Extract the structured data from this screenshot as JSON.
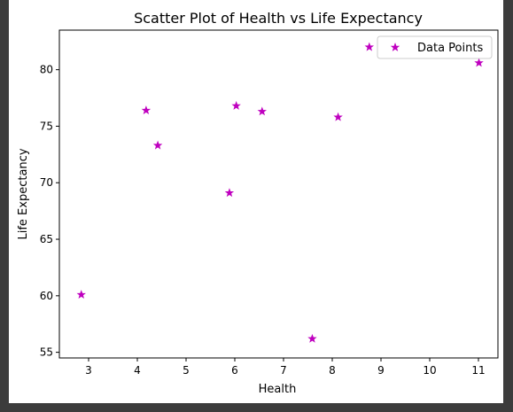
{
  "chart_data": {
    "type": "scatter",
    "title": "Scatter Plot of Health vs Life Expectancy",
    "xlabel": "Health",
    "ylabel": "Life Expectancy",
    "xlim": [
      2.4,
      11.4
    ],
    "ylim": [
      54.5,
      83.5
    ],
    "xticks": [
      3,
      4,
      5,
      6,
      7,
      8,
      9,
      10,
      11
    ],
    "yticks": [
      55,
      60,
      65,
      70,
      75,
      80
    ],
    "grid": false,
    "legend_position": "upper right",
    "marker": "star",
    "series": [
      {
        "name": "Data Points",
        "color": "#bf00bf",
        "x": [
          2.85,
          4.18,
          4.42,
          5.89,
          6.03,
          6.56,
          7.59,
          8.12,
          8.76,
          11.01
        ],
        "y": [
          60.1,
          76.4,
          73.3,
          69.1,
          76.8,
          76.3,
          56.2,
          75.8,
          82.0,
          80.6
        ]
      }
    ]
  }
}
